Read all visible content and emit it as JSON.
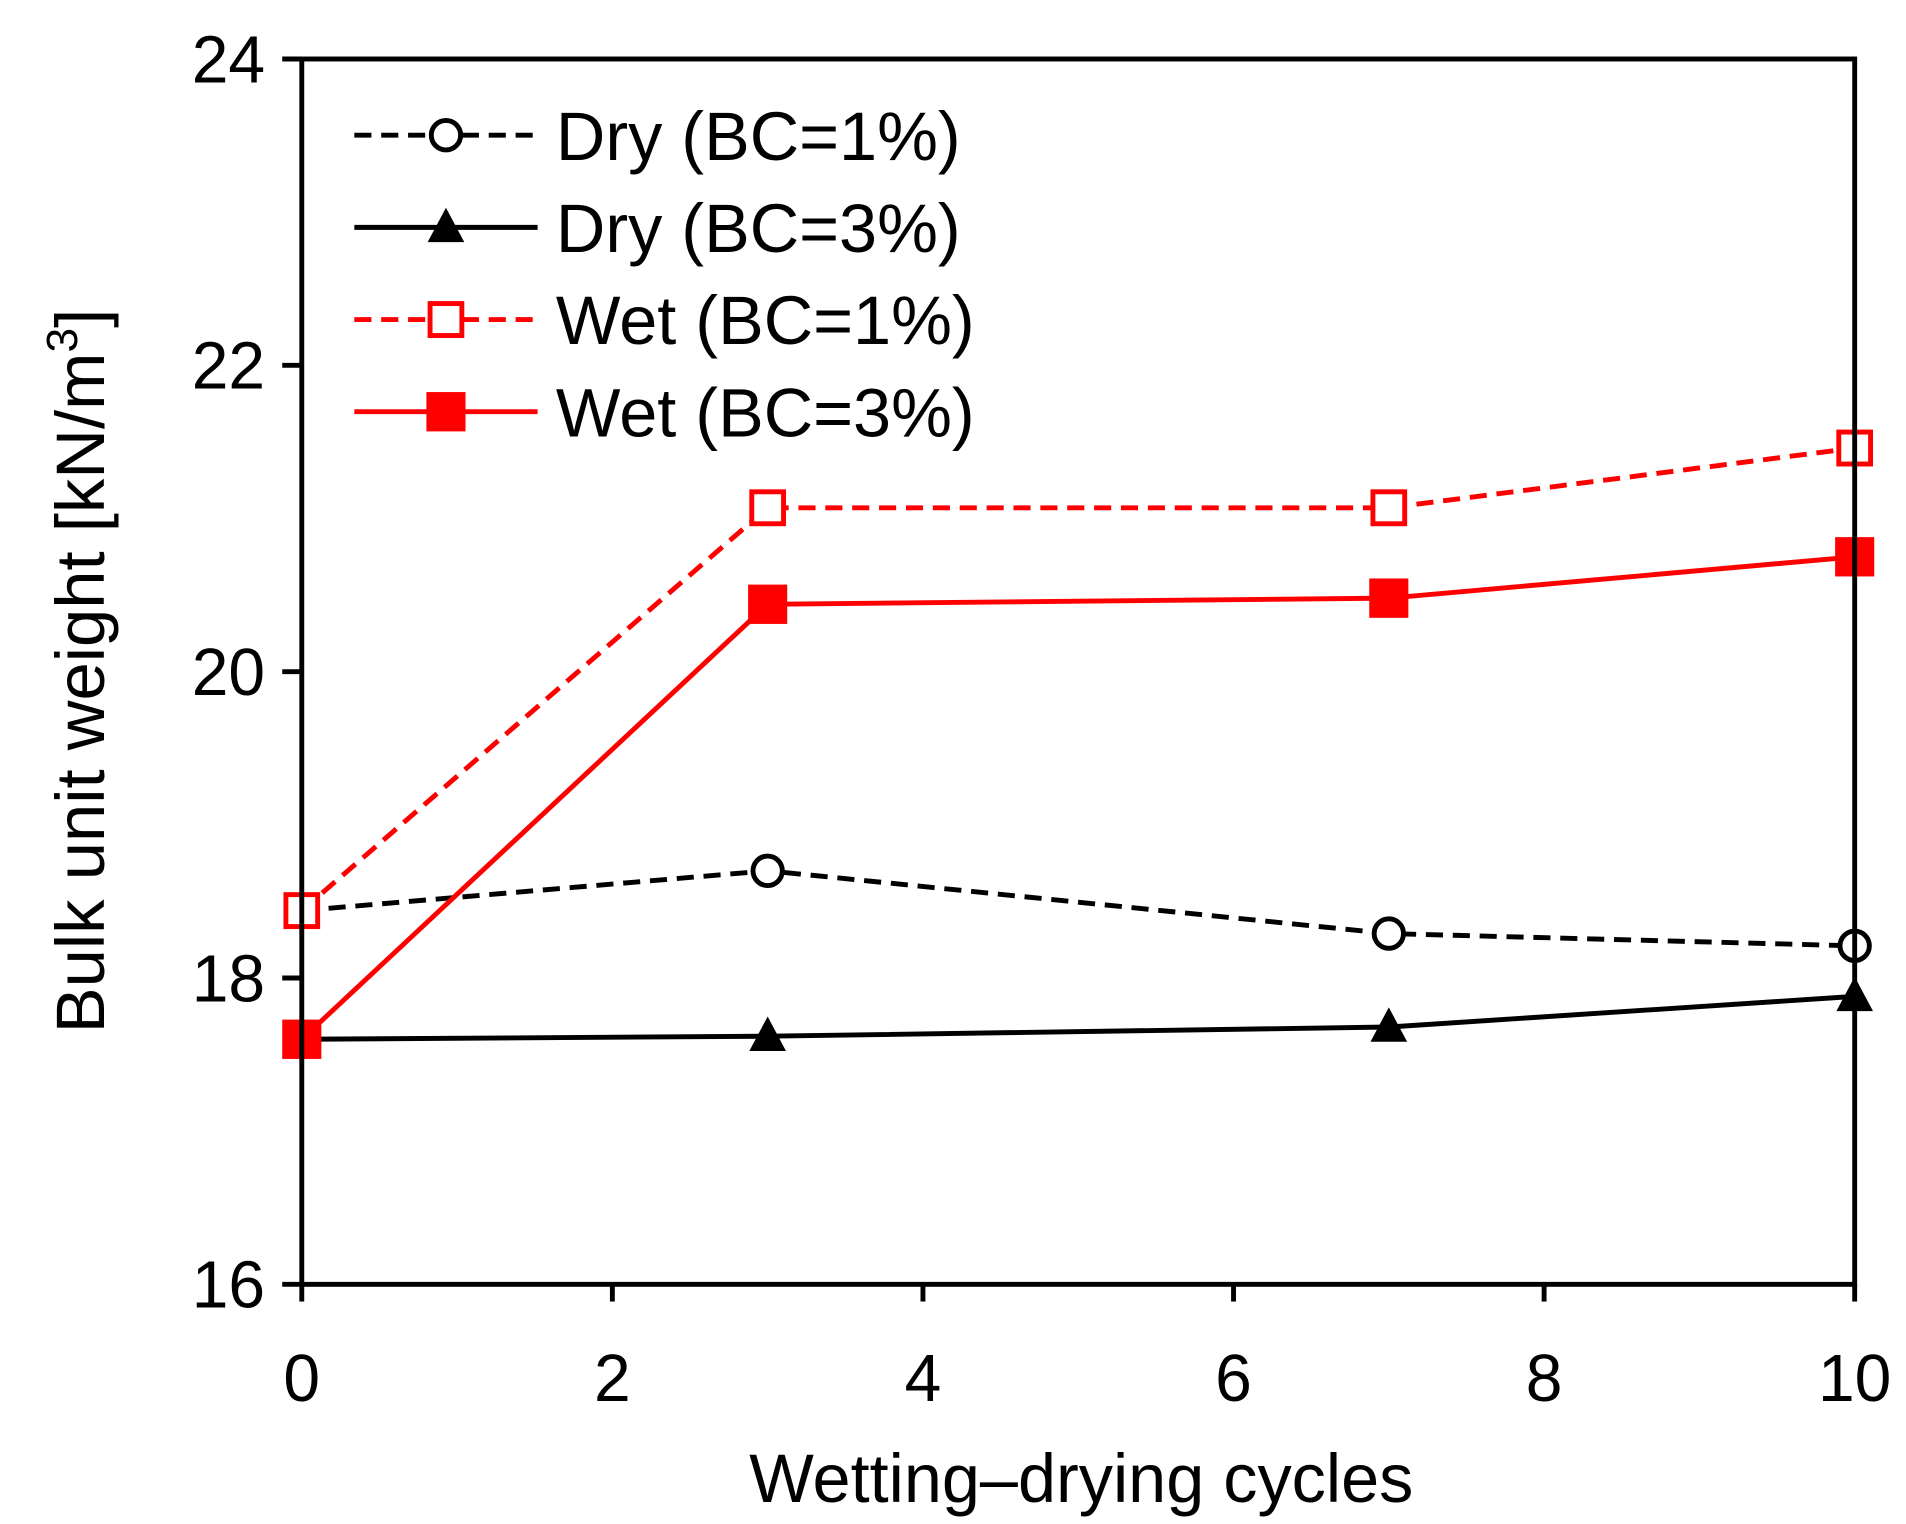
{
  "chart_data": {
    "type": "line",
    "title": "",
    "xlabel": "Wetting–drying cycles",
    "ylabel": "Bulk unit weight [kN/m",
    "ylabel_sup": "3",
    "ylabel_close": "]",
    "xlim": [
      0,
      10
    ],
    "ylim": [
      16,
      24
    ],
    "xticks": [
      "0",
      "2",
      "4",
      "6",
      "8",
      "10"
    ],
    "yticks": [
      "16",
      "18",
      "20",
      "22",
      "24"
    ],
    "grid": false,
    "legend_position": "top-left",
    "x": [
      0,
      3,
      7,
      10
    ],
    "series": [
      {
        "name": "Dry (BC=1%)",
        "values": [
          18.44,
          18.7,
          18.29,
          18.21
        ],
        "color": "#000000",
        "dash": true,
        "marker": "circle-open"
      },
      {
        "name": "Dry (BC=3%)",
        "values": [
          17.6,
          17.62,
          17.68,
          17.88
        ],
        "color": "#000000",
        "dash": false,
        "marker": "triangle-filled"
      },
      {
        "name": "Wet (BC=1%)",
        "values": [
          18.44,
          21.07,
          21.07,
          21.46
        ],
        "color": "#ff0000",
        "dash": true,
        "marker": "square-open"
      },
      {
        "name": "Wet (BC=3%)",
        "values": [
          17.6,
          20.44,
          20.48,
          20.75
        ],
        "color": "#ff0000",
        "dash": false,
        "marker": "square-filled"
      }
    ]
  }
}
